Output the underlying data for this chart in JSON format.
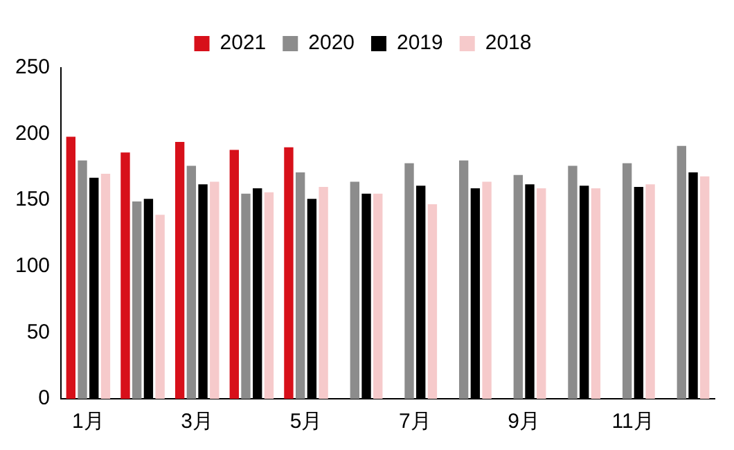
{
  "chart_data": {
    "type": "bar",
    "categories": [
      "1月",
      null,
      "3月",
      null,
      "5月",
      null,
      "7月",
      null,
      "9月",
      null,
      "11月",
      null
    ],
    "series": [
      {
        "name": "2021",
        "color": "#d7101a",
        "values": [
          198,
          186,
          194,
          188,
          190,
          null,
          null,
          null,
          null,
          null,
          null,
          null
        ]
      },
      {
        "name": "2020",
        "color": "#8c8c8c",
        "values": [
          180,
          149,
          176,
          155,
          171,
          164,
          178,
          180,
          169,
          176,
          178,
          191
        ]
      },
      {
        "name": "2019",
        "color": "#000000",
        "values": [
          167,
          151,
          162,
          159,
          151,
          155,
          161,
          159,
          162,
          161,
          160,
          171
        ]
      },
      {
        "name": "2018",
        "color": "#f6cacb",
        "values": [
          170,
          139,
          164,
          156,
          160,
          155,
          147,
          164,
          159,
          159,
          162,
          168
        ]
      }
    ],
    "ylim": [
      0,
      250
    ],
    "yticks": [
      0,
      50,
      100,
      150,
      200,
      250
    ],
    "grid": false,
    "legend": "top"
  }
}
